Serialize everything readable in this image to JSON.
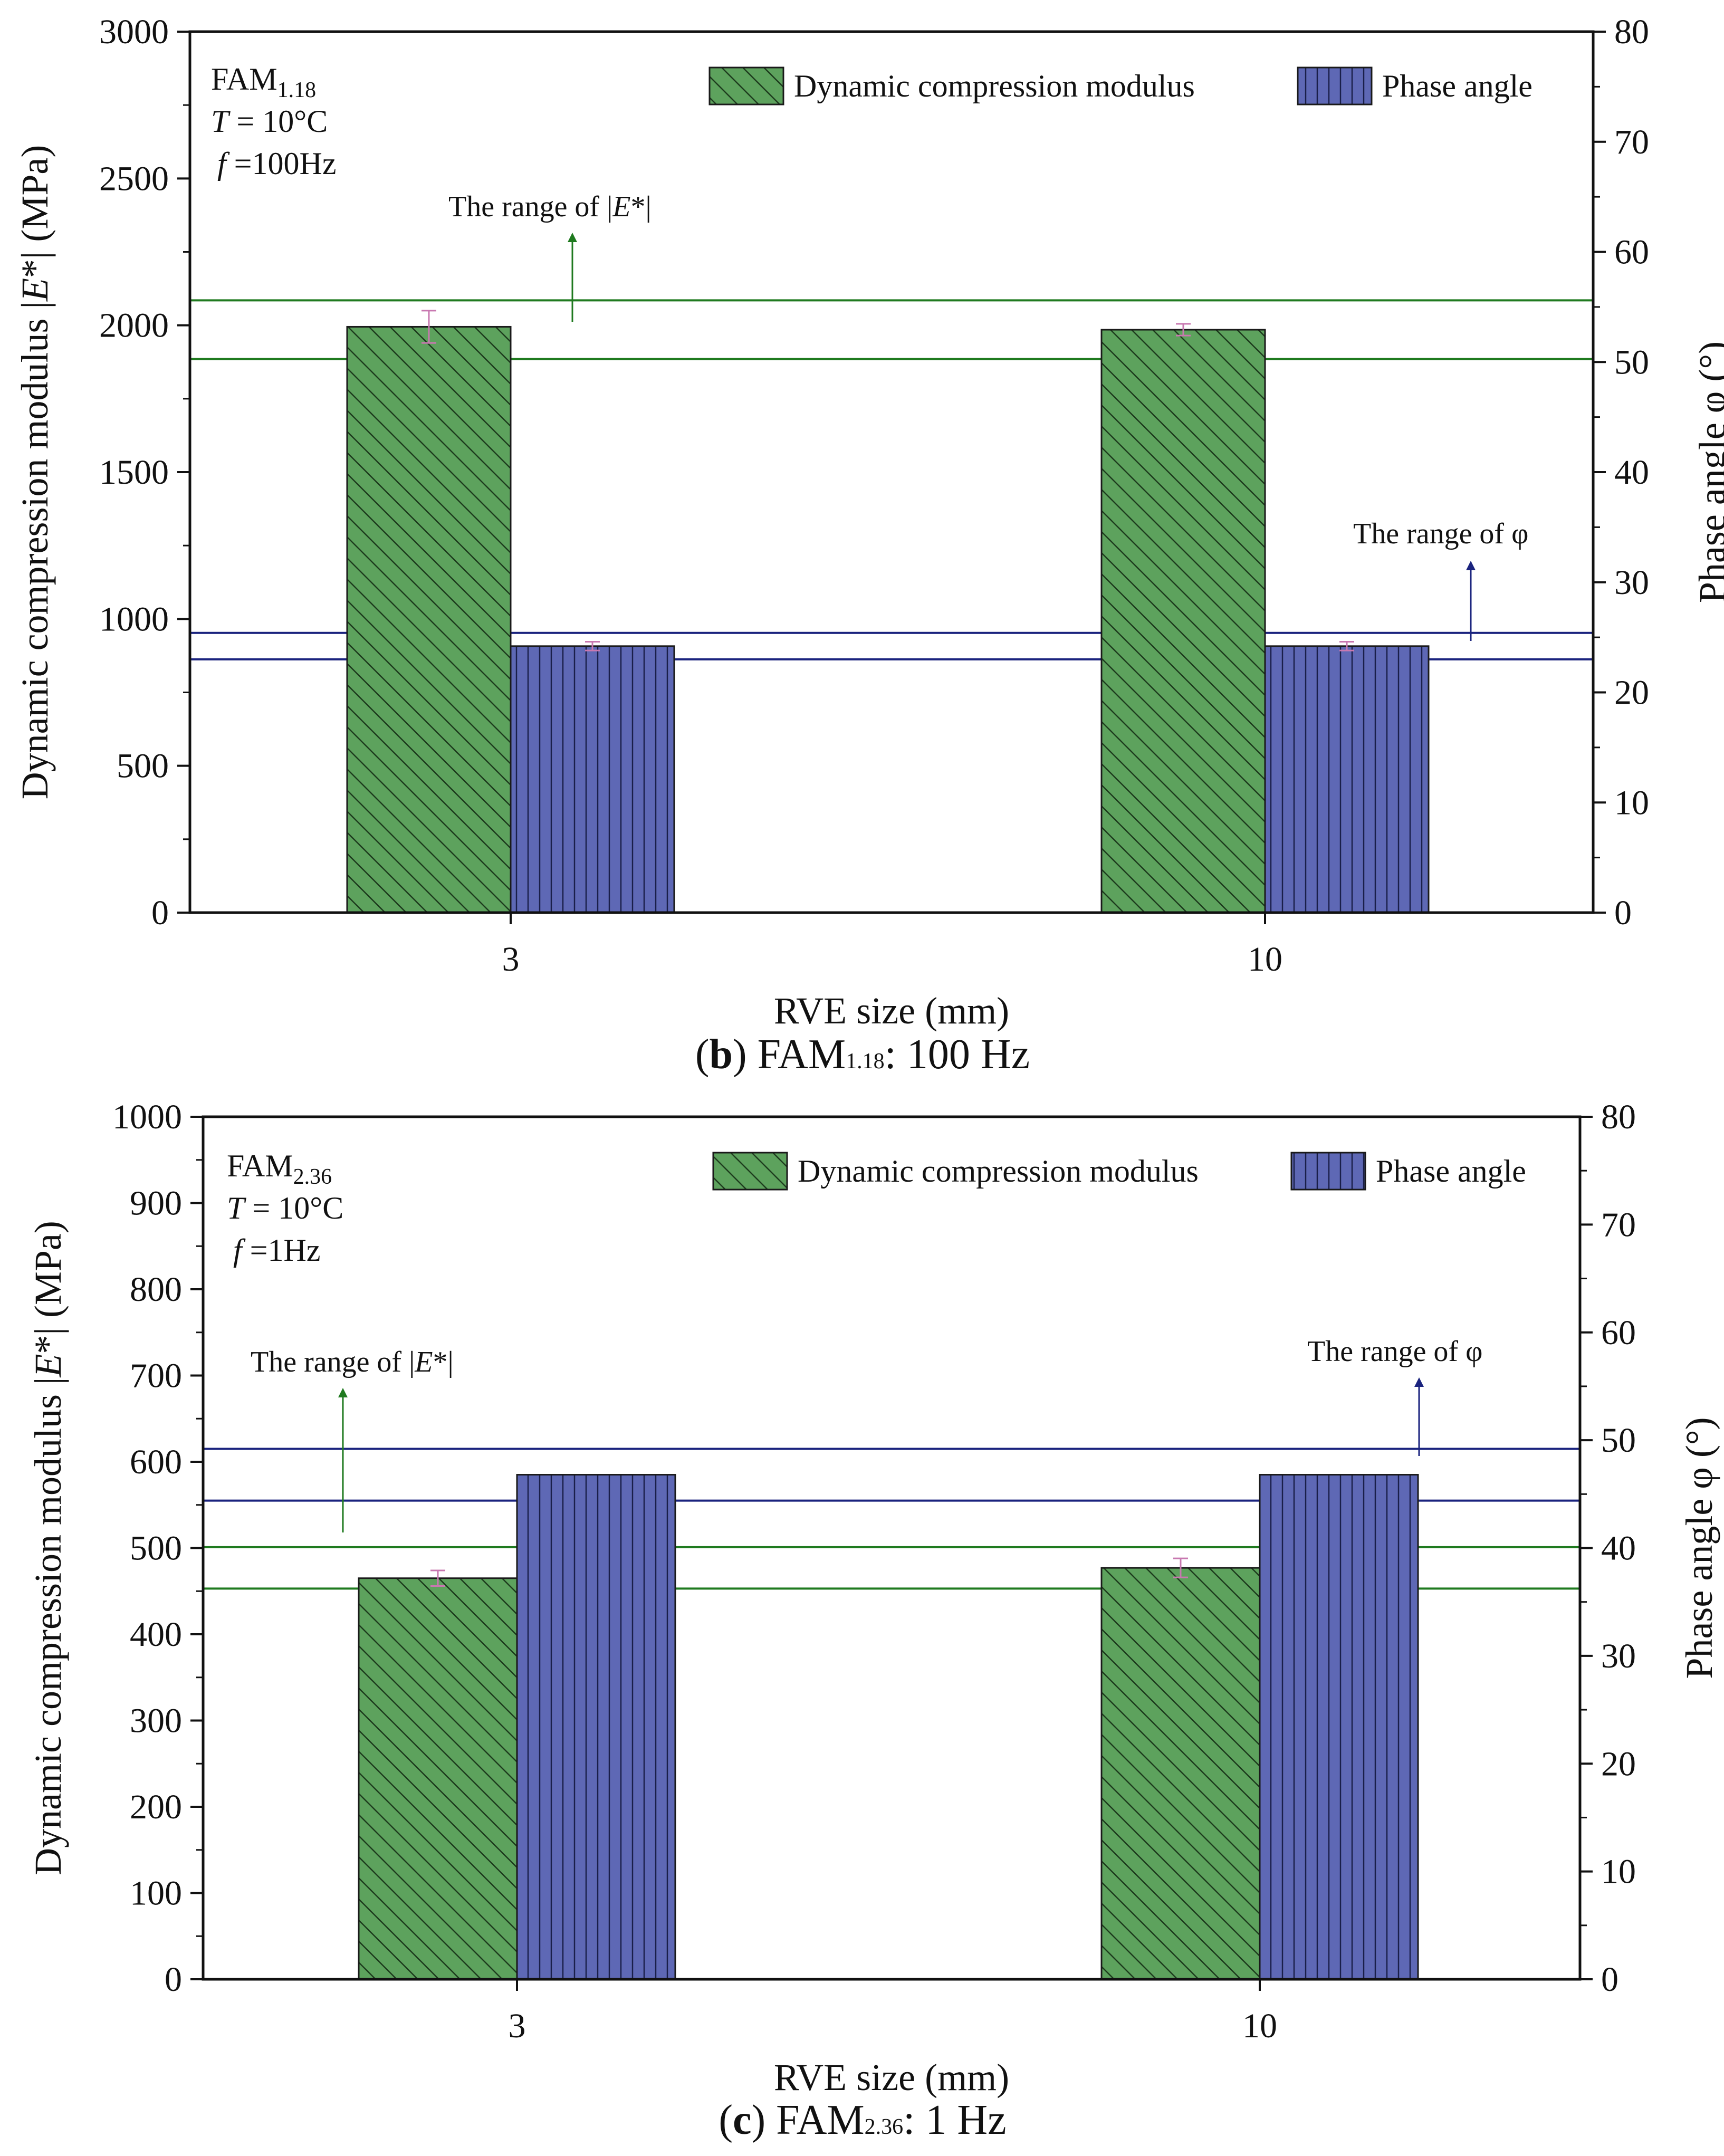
{
  "colors": {
    "modulus_fill": "#5DA25D",
    "phase_fill": "#5E68B5",
    "modulus_range_line": "#1F7A1F",
    "phase_range_line": "#1A237E",
    "error_bar": "#C878B0",
    "axis": "#111111"
  },
  "chart_data": [
    {
      "id": "b",
      "type": "bar",
      "title": "",
      "caption_letter": "b",
      "caption_rest": ") FAM",
      "caption_sub": "1.18",
      "caption_tail": ": 100 Hz",
      "categories": [
        "3",
        "10"
      ],
      "xlabel": "RVE size (mm)",
      "ylabel": "Dynamic compression modulus |E*| (MPa)",
      "ylabel_parts": [
        "Dynamic compression modulus |",
        "E",
        "*| (MPa)"
      ],
      "y2label": "Phase angle φ (°)",
      "ylim": [
        0,
        3000
      ],
      "y_ticks": [
        "0",
        "500",
        "1000",
        "1500",
        "2000",
        "2500",
        "3000"
      ],
      "y_tick_values": [
        0,
        500,
        1000,
        1500,
        2000,
        2500,
        3000
      ],
      "y2lim": [
        0,
        80
      ],
      "y2_ticks": [
        "0",
        "10",
        "20",
        "30",
        "40",
        "50",
        "60",
        "70",
        "80"
      ],
      "y2_tick_values": [
        0,
        10,
        20,
        30,
        40,
        50,
        60,
        70,
        80
      ],
      "series": [
        {
          "name": "Dynamic compression modulus",
          "axis": "left",
          "values": [
            1995,
            1985
          ],
          "errors": [
            55,
            20
          ]
        },
        {
          "name": "Phase angle",
          "axis": "right",
          "values": [
            24.2,
            24.2
          ],
          "errors": [
            0.4,
            0.4
          ]
        }
      ],
      "legend": [
        "Dynamic compression modulus",
        "Phase angle"
      ],
      "legend_position": "top-right",
      "info": {
        "material": "FAM",
        "material_sub": "1.18",
        "temp_label": "T",
        "temp_value": " = 10°C",
        "freq_label": "f",
        "freq_value": " =100Hz"
      },
      "modulus_range": {
        "label_prefix": "The range of |",
        "label_italic": "E",
        "label_suffix": "*|",
        "lower": 1885,
        "upper": 2085
      },
      "phase_range": {
        "label": "The range of  φ",
        "lower": 23.0,
        "upper": 25.4
      }
    },
    {
      "id": "c",
      "type": "bar",
      "title": "",
      "caption_letter": "c",
      "caption_rest": ") FAM",
      "caption_sub": "2.36",
      "caption_tail": ": 1 Hz",
      "categories": [
        "3",
        "10"
      ],
      "xlabel": "RVE size (mm)",
      "ylabel": "Dynamic compression modulus |E*| (MPa)",
      "ylabel_parts": [
        "Dynamic compression modulus |",
        "E",
        "*| (MPa)"
      ],
      "y2label": "Phase angle φ (°)",
      "ylim": [
        0,
        1000
      ],
      "y_ticks": [
        "0",
        "100",
        "200",
        "300",
        "400",
        "500",
        "600",
        "700",
        "800",
        "900",
        "1000"
      ],
      "y_tick_values": [
        0,
        100,
        200,
        300,
        400,
        500,
        600,
        700,
        800,
        900,
        1000
      ],
      "y2lim": [
        0,
        80
      ],
      "y2_ticks": [
        "0",
        "10",
        "20",
        "30",
        "40",
        "50",
        "60",
        "70",
        "80"
      ],
      "y2_tick_values": [
        0,
        10,
        20,
        30,
        40,
        50,
        60,
        70,
        80
      ],
      "series": [
        {
          "name": "Dynamic compression modulus",
          "axis": "left",
          "values": [
            465,
            477
          ],
          "errors": [
            9,
            11
          ]
        },
        {
          "name": "Phase angle",
          "axis": "right",
          "values": [
            46.8,
            46.8
          ],
          "errors": [
            0,
            0
          ]
        }
      ],
      "legend": [
        "Dynamic compression modulus",
        "Phase angle"
      ],
      "legend_position": "top-right",
      "info": {
        "material": "FAM",
        "material_sub": "2.36",
        "temp_label": "T",
        "temp_value": " = 10°C",
        "freq_label": "f",
        "freq_value": " =1Hz"
      },
      "modulus_range": {
        "label_prefix": "The range of |",
        "label_italic": "E",
        "label_suffix": "*|",
        "lower": 453,
        "upper": 501
      },
      "phase_range": {
        "label": "The range of  φ",
        "lower": 44.4,
        "upper": 49.2
      }
    }
  ]
}
